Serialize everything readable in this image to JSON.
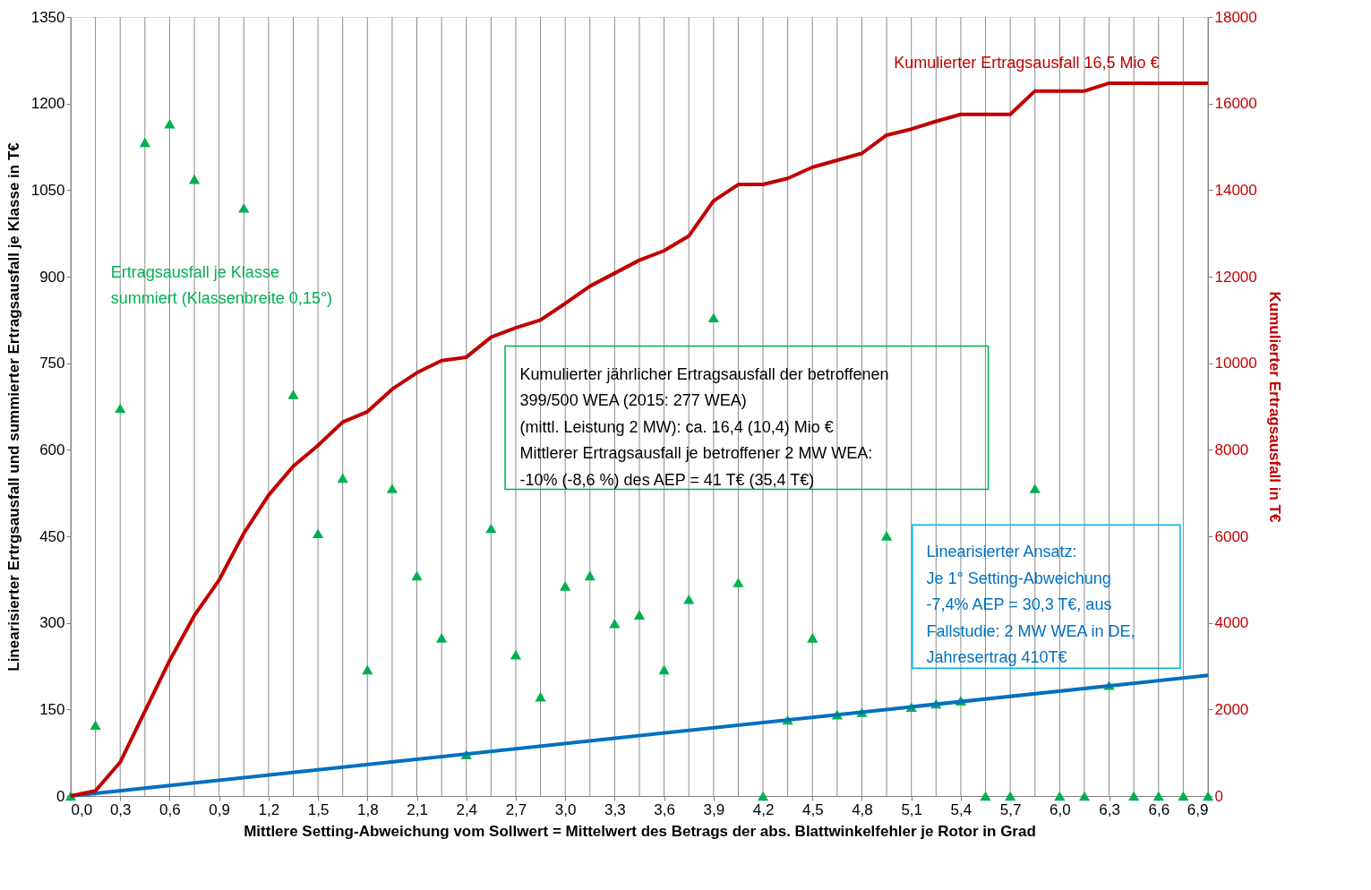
{
  "chart_data": {
    "type": "line",
    "xlabel": "Mittlere Setting-Abweichung vom Sollwert = Mittelwert des Betrags der abs. Blattwinkelfehler je Rotor in Grad",
    "ylabel": "Linearisierter Ertrgsausfall und summierter Ertragsausfall je Klasse in T€",
    "y2label": "Kumulierter Ertragsausfall in T€",
    "x": [
      0,
      0.15,
      0.3,
      0.45,
      0.6,
      0.75,
      0.9,
      1.05,
      1.2,
      1.35,
      1.5,
      1.65,
      1.8,
      1.95,
      2.1,
      2.25,
      2.4,
      2.55,
      2.7,
      2.85,
      3.0,
      3.15,
      3.3,
      3.45,
      3.6,
      3.75,
      3.9,
      4.05,
      4.2,
      4.35,
      4.5,
      4.65,
      4.8,
      4.95,
      5.1,
      5.25,
      5.4,
      5.55,
      5.7,
      5.85,
      6.0,
      6.15,
      6.3,
      6.45,
      6.6,
      6.75,
      6.9
    ],
    "series": [
      {
        "type": "scatter",
        "marker": "triangle",
        "color": "#00b050",
        "values": [
          0,
          123,
          672,
          1133,
          1165,
          1069,
          null,
          1019,
          null,
          696,
          455,
          551,
          219,
          533,
          382,
          274,
          72,
          464,
          245,
          172,
          364,
          382,
          299,
          314,
          219,
          341,
          829,
          370,
          0,
          132,
          274,
          141,
          145,
          451,
          154,
          160,
          165,
          0,
          0,
          533,
          0,
          0,
          192,
          0,
          0,
          0,
          0
        ]
      },
      {
        "type": "line",
        "color": "#c00000",
        "axis": "y2",
        "values": [
          0,
          120,
          780,
          1960,
          3130,
          4170,
          4990,
          6070,
          6950,
          7620,
          8100,
          8640,
          8880,
          9400,
          9780,
          10060,
          10140,
          10600,
          10820,
          11000,
          11380,
          11780,
          12080,
          12380,
          12600,
          12940,
          13750,
          14130,
          14130,
          14270,
          14530,
          14690,
          14850,
          15270,
          15410,
          15590,
          15750,
          15750,
          15750,
          16290,
          16290,
          16290,
          16470,
          16470,
          16470,
          16470,
          16470
        ]
      },
      {
        "color": "#0070c0",
        "x": [
          0,
          6.9
        ],
        "values": [
          0,
          209
        ]
      }
    ],
    "xlim": [
      0,
      6.9
    ],
    "xticks": [
      {
        "value": 0,
        "label": "0,0"
      },
      {
        "value": 0.15,
        "label": null
      },
      {
        "value": 0.3,
        "label": "0,3"
      },
      {
        "value": 0.45,
        "label": null
      },
      {
        "value": 0.6,
        "label": "0,6"
      },
      {
        "value": 0.75,
        "label": null
      },
      {
        "value": 0.9,
        "label": "0,9"
      },
      {
        "value": 1.05,
        "label": null
      },
      {
        "value": 1.2,
        "label": "1,2"
      },
      {
        "value": 1.35,
        "label": null
      },
      {
        "value": 1.5,
        "label": "1,5"
      },
      {
        "value": 1.65,
        "label": null
      },
      {
        "value": 1.8,
        "label": "1,8"
      },
      {
        "value": 1.95,
        "label": null
      },
      {
        "value": 2.1,
        "label": "2,1"
      },
      {
        "value": 2.25,
        "label": null
      },
      {
        "value": 2.4,
        "label": "2,4"
      },
      {
        "value": 2.55,
        "label": null
      },
      {
        "value": 2.7,
        "label": "2,7"
      },
      {
        "value": 2.85,
        "label": null
      },
      {
        "value": 3.0,
        "label": "3,0"
      },
      {
        "value": 3.15,
        "label": null
      },
      {
        "value": 3.3,
        "label": "3,3"
      },
      {
        "value": 3.45,
        "label": null
      },
      {
        "value": 3.6,
        "label": "3,6"
      },
      {
        "value": 3.75,
        "label": null
      },
      {
        "value": 3.9,
        "label": "3,9"
      },
      {
        "value": 4.05,
        "label": null
      },
      {
        "value": 4.2,
        "label": "4,2"
      },
      {
        "value": 4.35,
        "label": null
      },
      {
        "value": 4.5,
        "label": "4,5"
      },
      {
        "value": 4.65,
        "label": null
      },
      {
        "value": 4.8,
        "label": "4,8"
      },
      {
        "value": 4.95,
        "label": null
      },
      {
        "value": 5.1,
        "label": "5,1"
      },
      {
        "value": 5.25,
        "label": null
      },
      {
        "value": 5.4,
        "label": "5,4"
      },
      {
        "value": 5.55,
        "label": null
      },
      {
        "value": 5.7,
        "label": "5,7"
      },
      {
        "value": 5.85,
        "label": null
      },
      {
        "value": 6.0,
        "label": "6,0"
      },
      {
        "value": 6.15,
        "label": null
      },
      {
        "value": 6.3,
        "label": "6,3"
      },
      {
        "value": 6.45,
        "label": null
      },
      {
        "value": 6.6,
        "label": "6,6"
      },
      {
        "value": 6.75,
        "label": null
      },
      {
        "value": 6.9,
        "label": "6,9"
      }
    ],
    "ylim": [
      0,
      1350
    ],
    "yticks": [
      0,
      150,
      300,
      450,
      600,
      750,
      900,
      1050,
      1200,
      1350
    ],
    "y2lim": [
      0,
      18000
    ],
    "y2ticks": [
      0,
      2000,
      4000,
      6000,
      8000,
      10000,
      12000,
      14000,
      16000,
      18000
    ],
    "grid": "x",
    "annotations": [
      "Kumulierter Ertragsausfall 16,5 Mio €",
      "Ertragsausfall  je Klasse\nsummiert (Klassenbreite 0,15°)",
      "Kumulierter jährlicher Ertragsausfall der betroffenen\n399/500 WEA (2015: 277 WEA)\n(mittl. Leistung 2 MW): ca. 16,4 (10,4) Mio €\nMittlerer Ertragsausfall  je betroffener 2 MW WEA:\n-10% (-8,6 %) des AEP = 41 T€ (35,4 T€)",
      "Linearisierter Ansatz:\nJe 1° Setting-Abweichung\n -7,4% AEP = 30,3 T€, aus\nFallstudie: 2 MW WEA in DE,\nJahresertrag 410T€"
    ]
  }
}
